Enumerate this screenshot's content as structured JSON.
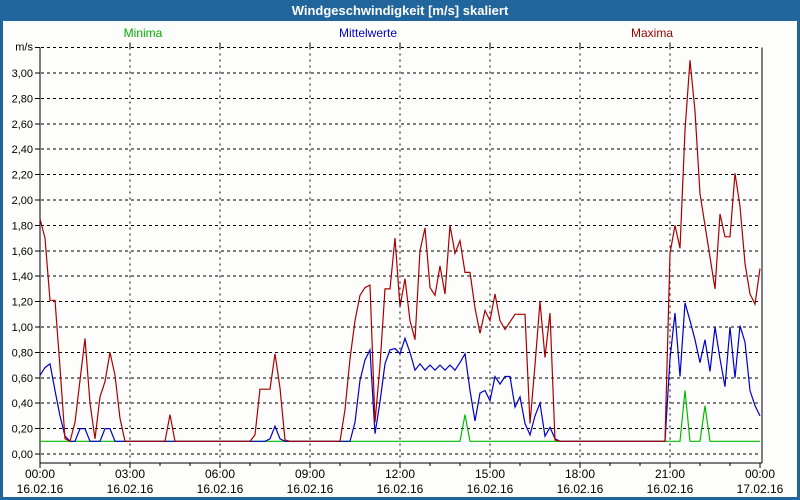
{
  "window": {
    "title": "Windgeschwindigkeit [m/s] skaliert"
  },
  "legend": [
    {
      "label": "Minima",
      "color": "#00aa00"
    },
    {
      "label": "Mittelwerte",
      "color": "#0000bb"
    },
    {
      "label": "Maxima",
      "color": "#990000"
    }
  ],
  "chart_data": {
    "type": "line",
    "title": "Windgeschwindigkeit [m/s] skaliert",
    "unit_label": "m/s",
    "ylim": [
      0.0,
      3.2
    ],
    "y_tick_step": 0.2,
    "y_tick_labels": [
      "0,00",
      "0,20",
      "0,40",
      "0,60",
      "0,80",
      "1,00",
      "1,20",
      "1,40",
      "1,60",
      "1,80",
      "2,00",
      "2,20",
      "2,40",
      "2,60",
      "2,80",
      "3,00"
    ],
    "x_minutes_per_point": 10,
    "x_total_minutes": 1440,
    "grid": "dashed",
    "legend_position": "top",
    "x_ticks": [
      {
        "time": "00:00",
        "date": "16.02.16"
      },
      {
        "time": "03:00",
        "date": "16.02.16"
      },
      {
        "time": "06:00",
        "date": "16.02.16"
      },
      {
        "time": "09:00",
        "date": "16.02.16"
      },
      {
        "time": "12:00",
        "date": "16.02.16"
      },
      {
        "time": "15:00",
        "date": "16.02.16"
      },
      {
        "time": "18:00",
        "date": "16.02.16"
      },
      {
        "time": "21:00",
        "date": "16.02.16"
      },
      {
        "time": "00:00",
        "date": "17.02.16"
      }
    ],
    "series": [
      {
        "name": "Minima",
        "color": "#00bb00",
        "values": [
          0.1,
          0.1,
          0.1,
          0.1,
          0.1,
          0.1,
          0.1,
          0.1,
          0.1,
          0.1,
          0.1,
          0.1,
          0.1,
          0.1,
          0.1,
          0.1,
          0.1,
          0.1,
          0.1,
          0.1,
          0.1,
          0.1,
          0.1,
          0.1,
          0.1,
          0.1,
          0.1,
          0.1,
          0.1,
          0.1,
          0.1,
          0.1,
          0.1,
          0.1,
          0.1,
          0.1,
          0.1,
          0.1,
          0.1,
          0.1,
          0.1,
          0.1,
          0.1,
          0.1,
          0.1,
          0.1,
          0.1,
          0.1,
          0.1,
          0.1,
          0.1,
          0.1,
          0.1,
          0.1,
          0.1,
          0.1,
          0.1,
          0.1,
          0.1,
          0.1,
          0.1,
          0.1,
          0.1,
          0.1,
          0.1,
          0.1,
          0.1,
          0.1,
          0.1,
          0.1,
          0.1,
          0.1,
          0.1,
          0.1,
          0.1,
          0.1,
          0.1,
          0.1,
          0.1,
          0.1,
          0.1,
          0.1,
          0.1,
          0.1,
          0.1,
          0.31,
          0.1,
          0.1,
          0.1,
          0.1,
          0.1,
          0.1,
          0.1,
          0.1,
          0.1,
          0.1,
          0.1,
          0.1,
          0.1,
          0.1,
          0.1,
          0.1,
          0.1,
          0.1,
          0.1,
          0.1,
          0.1,
          0.1,
          0.1,
          0.1,
          0.1,
          0.1,
          0.1,
          0.1,
          0.1,
          0.1,
          0.1,
          0.1,
          0.1,
          0.1,
          0.1,
          0.1,
          0.1,
          0.1,
          0.1,
          0.1,
          0.1,
          0.1,
          0.1,
          0.5,
          0.1,
          0.1,
          0.1,
          0.38,
          0.1,
          0.1,
          0.1,
          0.1,
          0.1,
          0.1,
          0.1,
          0.1,
          0.1,
          0.1,
          0.1
        ]
      },
      {
        "name": "Mittelwerte",
        "color": "#0000cc",
        "values": [
          0.62,
          0.68,
          0.71,
          0.5,
          0.3,
          0.14,
          0.1,
          0.1,
          0.2,
          0.2,
          0.1,
          0.1,
          0.1,
          0.2,
          0.2,
          0.1,
          0.1,
          0.1,
          0.1,
          0.1,
          0.1,
          0.1,
          0.1,
          0.1,
          0.1,
          0.1,
          0.1,
          0.1,
          0.1,
          0.1,
          0.1,
          0.1,
          0.1,
          0.1,
          0.1,
          0.1,
          0.1,
          0.1,
          0.1,
          0.1,
          0.1,
          0.1,
          0.1,
          0.1,
          0.1,
          0.1,
          0.12,
          0.22,
          0.12,
          0.1,
          0.1,
          0.1,
          0.1,
          0.1,
          0.1,
          0.1,
          0.1,
          0.1,
          0.1,
          0.1,
          0.1,
          0.1,
          0.1,
          0.25,
          0.58,
          0.74,
          0.82,
          0.16,
          0.41,
          0.71,
          0.82,
          0.83,
          0.79,
          0.91,
          0.8,
          0.66,
          0.71,
          0.66,
          0.7,
          0.66,
          0.7,
          0.66,
          0.7,
          0.66,
          0.72,
          0.79,
          0.5,
          0.26,
          0.48,
          0.5,
          0.42,
          0.61,
          0.55,
          0.61,
          0.61,
          0.37,
          0.45,
          0.24,
          0.15,
          0.3,
          0.4,
          0.14,
          0.21,
          0.12,
          0.1,
          0.1,
          0.1,
          0.1,
          0.1,
          0.1,
          0.1,
          0.1,
          0.1,
          0.1,
          0.1,
          0.1,
          0.1,
          0.1,
          0.1,
          0.1,
          0.1,
          0.1,
          0.1,
          0.1,
          0.1,
          0.1,
          0.75,
          1.11,
          0.61,
          1.19,
          1.05,
          0.9,
          0.72,
          0.9,
          0.65,
          1.0,
          0.75,
          0.53,
          1.0,
          0.6,
          1.01,
          0.88,
          0.5,
          0.38,
          0.3
        ]
      },
      {
        "name": "Maxima",
        "color": "#aa0000",
        "values": [
          1.85,
          1.7,
          1.21,
          1.21,
          0.68,
          0.12,
          0.1,
          0.25,
          0.58,
          0.91,
          0.4,
          0.12,
          0.45,
          0.57,
          0.8,
          0.62,
          0.28,
          0.1,
          0.1,
          0.1,
          0.1,
          0.1,
          0.1,
          0.1,
          0.1,
          0.1,
          0.31,
          0.1,
          0.1,
          0.1,
          0.1,
          0.1,
          0.1,
          0.1,
          0.1,
          0.1,
          0.1,
          0.1,
          0.1,
          0.1,
          0.1,
          0.1,
          0.1,
          0.15,
          0.51,
          0.51,
          0.51,
          0.79,
          0.52,
          0.11,
          0.1,
          0.1,
          0.1,
          0.1,
          0.1,
          0.1,
          0.1,
          0.1,
          0.1,
          0.1,
          0.1,
          0.35,
          0.75,
          1.05,
          1.25,
          1.31,
          1.33,
          0.25,
          0.7,
          1.3,
          1.3,
          1.7,
          1.16,
          1.38,
          1.05,
          0.9,
          1.6,
          1.78,
          1.31,
          1.25,
          1.48,
          1.26,
          1.8,
          1.58,
          1.68,
          1.43,
          1.43,
          1.15,
          0.95,
          1.13,
          1.05,
          1.26,
          1.05,
          0.98,
          1.04,
          1.1,
          1.1,
          1.1,
          0.24,
          0.7,
          1.2,
          0.76,
          1.11,
          0.11,
          0.1,
          0.1,
          0.1,
          0.1,
          0.1,
          0.1,
          0.1,
          0.1,
          0.1,
          0.1,
          0.1,
          0.1,
          0.1,
          0.1,
          0.1,
          0.1,
          0.1,
          0.1,
          0.1,
          0.1,
          0.1,
          0.1,
          1.58,
          1.8,
          1.62,
          2.55,
          3.1,
          2.7,
          2.05,
          1.8,
          1.55,
          1.3,
          1.89,
          1.71,
          1.71,
          2.21,
          1.95,
          1.5,
          1.26,
          1.18,
          1.46
        ]
      }
    ]
  }
}
